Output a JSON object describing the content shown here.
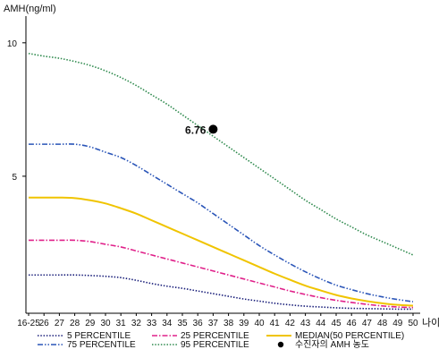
{
  "chart_data": {
    "type": "line",
    "title": "",
    "ylabel": "AMH(ng/ml)",
    "xlabel": "나이",
    "x_tick_labels": [
      "16-25",
      "26",
      "27",
      "28",
      "29",
      "30",
      "31",
      "32",
      "33",
      "34",
      "35",
      "36",
      "37",
      "38",
      "39",
      "40",
      "41",
      "42",
      "43",
      "44",
      "45",
      "46",
      "47",
      "48",
      "49",
      "50"
    ],
    "y_ticks": [
      {
        "value": 5,
        "label": "5"
      },
      {
        "value": 10,
        "label": "10"
      }
    ],
    "ylim": [
      0,
      11
    ],
    "grid": false,
    "legend_position": "bottom",
    "series": [
      {
        "name": "5 PERCENTILE",
        "color": "#1a1f7a",
        "dash": "dotted",
        "values": [
          1.3,
          1.3,
          1.3,
          1.3,
          1.28,
          1.25,
          1.2,
          1.1,
          0.98,
          0.88,
          0.8,
          0.7,
          0.6,
          0.5,
          0.4,
          0.32,
          0.24,
          0.18,
          0.13,
          0.1,
          0.07,
          0.05,
          0.04,
          0.03,
          0.02,
          0.02
        ]
      },
      {
        "name": "25 PERCENTILE",
        "color": "#e0218a",
        "dash": "dashdot",
        "values": [
          2.6,
          2.6,
          2.6,
          2.6,
          2.55,
          2.45,
          2.35,
          2.2,
          2.05,
          1.9,
          1.75,
          1.6,
          1.45,
          1.3,
          1.15,
          1.0,
          0.85,
          0.7,
          0.57,
          0.45,
          0.35,
          0.27,
          0.2,
          0.14,
          0.1,
          0.08
        ]
      },
      {
        "name": "MEDIAN(50 PERCENTILE)",
        "color": "#f0c400",
        "dash": "solid",
        "values": [
          4.2,
          4.2,
          4.2,
          4.18,
          4.1,
          3.98,
          3.8,
          3.6,
          3.35,
          3.1,
          2.85,
          2.6,
          2.35,
          2.1,
          1.85,
          1.6,
          1.35,
          1.12,
          0.9,
          0.72,
          0.55,
          0.42,
          0.32,
          0.24,
          0.18,
          0.15
        ]
      },
      {
        "name": "75 PERCENTILE",
        "color": "#2a55b8",
        "dash": "dashdotdot",
        "values": [
          6.2,
          6.2,
          6.2,
          6.2,
          6.1,
          5.9,
          5.7,
          5.4,
          5.05,
          4.7,
          4.35,
          4.0,
          3.6,
          3.2,
          2.8,
          2.4,
          2.05,
          1.72,
          1.42,
          1.15,
          0.92,
          0.75,
          0.6,
          0.48,
          0.38,
          0.3
        ]
      },
      {
        "name": "95 PERCENTILE",
        "color": "#2f8a4e",
        "dash": "dotted",
        "values": [
          9.6,
          9.5,
          9.42,
          9.3,
          9.15,
          8.95,
          8.7,
          8.4,
          8.05,
          7.7,
          7.3,
          6.9,
          6.5,
          6.1,
          5.7,
          5.3,
          4.9,
          4.5,
          4.1,
          3.75,
          3.4,
          3.1,
          2.8,
          2.55,
          2.3,
          2.05
        ]
      }
    ],
    "patient_marker": {
      "legend_label": "수진자의 AMH 농도",
      "x_index": 12,
      "value": 6.76,
      "label": "6.76",
      "color": "#000000"
    }
  }
}
